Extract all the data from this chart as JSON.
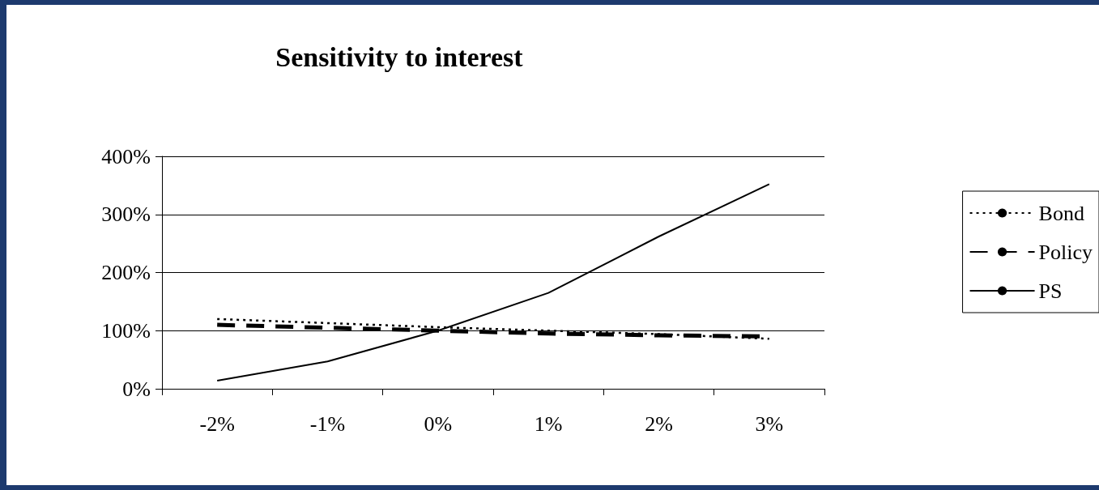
{
  "chart_data": {
    "type": "line",
    "title": "Sensitivity to interest",
    "categories": [
      "-2%",
      "-1%",
      "0%",
      "1%",
      "2%",
      "3%"
    ],
    "series": [
      {
        "name": "Bond",
        "color": "#000000",
        "line_style": "dotted",
        "values": [
          120,
          113,
          106,
          100,
          94,
          86
        ]
      },
      {
        "name": "Policy",
        "color": "#000000",
        "line_style": "dashed",
        "values": [
          110,
          105,
          100,
          95,
          92,
          90
        ]
      },
      {
        "name": "PS",
        "color": "#000000",
        "line_style": "solid",
        "values": [
          14,
          47,
          100,
          165,
          262,
          352
        ]
      }
    ],
    "ylim": [
      0,
      400
    ],
    "yticks": [
      {
        "value": 0,
        "label": "0%"
      },
      {
        "value": 100,
        "label": "100%"
      },
      {
        "value": 200,
        "label": "200%"
      },
      {
        "value": 300,
        "label": "300%"
      },
      {
        "value": 400,
        "label": "400%"
      }
    ],
    "grid": "y",
    "legend": "right",
    "marker": "none"
  }
}
